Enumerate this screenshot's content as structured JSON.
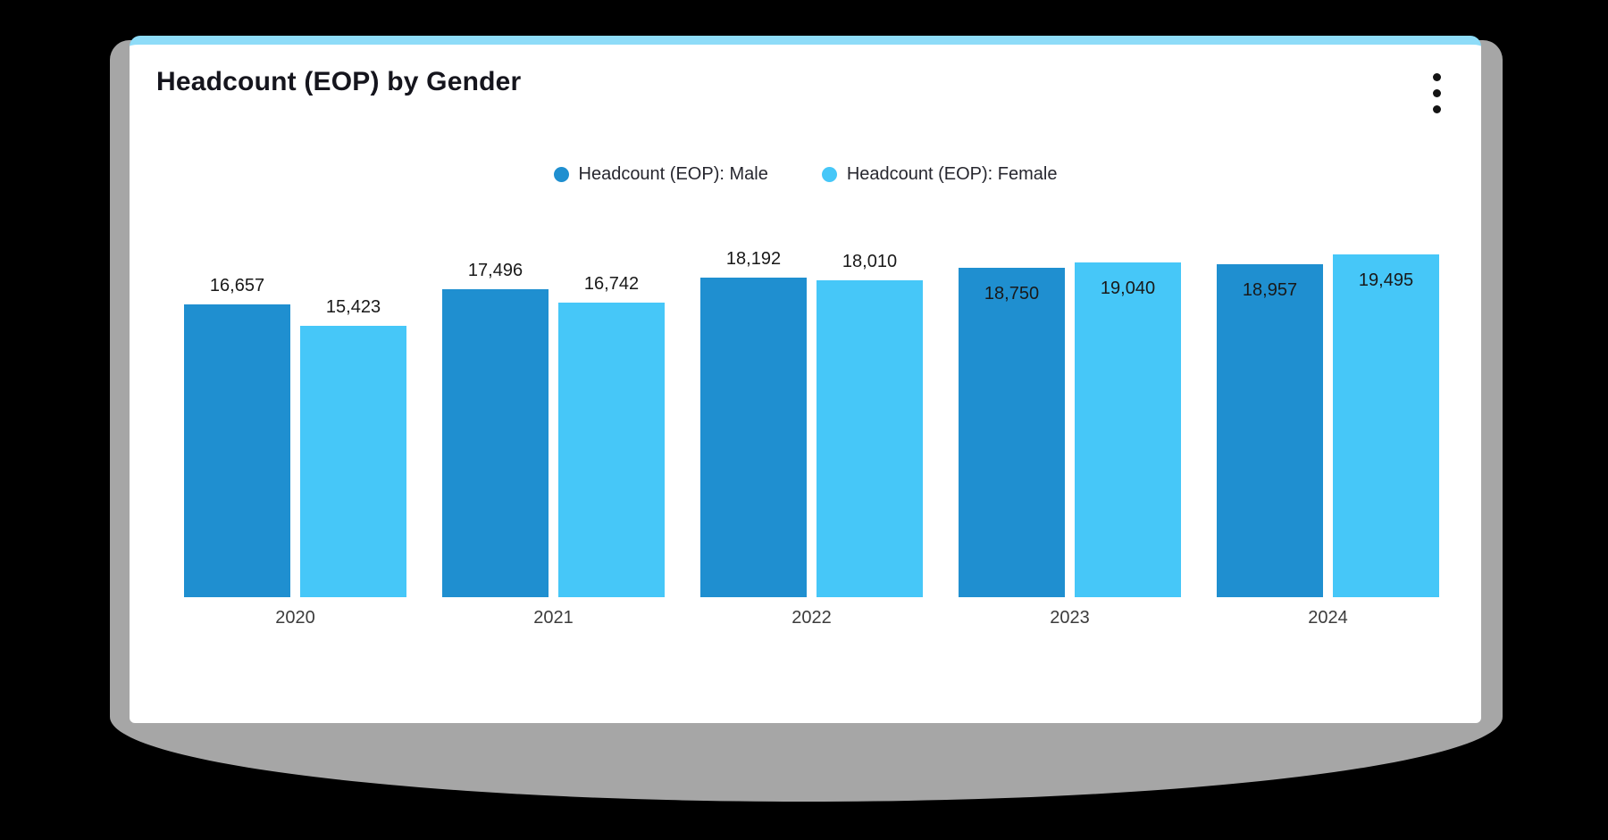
{
  "card": {
    "title": "Headcount (EOP) by Gender",
    "menu_icon": "kebab-menu-icon"
  },
  "colors": {
    "male": "#1f8fd0",
    "female": "#46c7f8",
    "card_top_accent": "#8edcf8",
    "card_bg": "#ffffff",
    "page_bg": "#000000",
    "shadow": "#a6a6a6",
    "title_text": "#15151d",
    "label_text": "#191919",
    "axis_text": "#3c3c3c"
  },
  "chart_data": {
    "type": "bar",
    "title": "Headcount (EOP) by Gender",
    "categories": [
      "2020",
      "2021",
      "2022",
      "2023",
      "2024"
    ],
    "series": [
      {
        "name": "Headcount (EOP): Male",
        "key": "male",
        "color": "#1f8fd0",
        "values": [
          16657,
          17496,
          18192,
          18750,
          18957
        ]
      },
      {
        "name": "Headcount (EOP): Female",
        "key": "female",
        "color": "#46c7f8",
        "values": [
          15423,
          16742,
          18010,
          19040,
          19495
        ]
      }
    ],
    "value_labels": true,
    "value_label_inside_by_category": [
      false,
      false,
      false,
      true,
      true
    ],
    "legend_position": "top-center",
    "grid": false,
    "y_axis_visible": false,
    "xlabel": "",
    "ylabel": "",
    "ylim": [
      0,
      21800
    ]
  }
}
